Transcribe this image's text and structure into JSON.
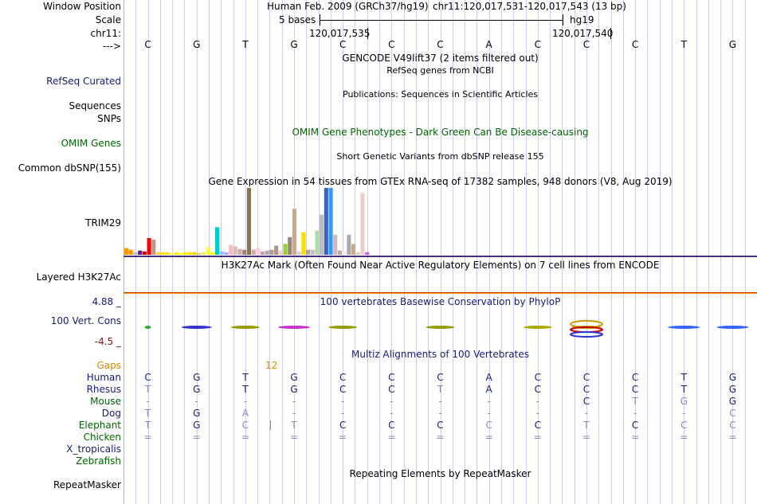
{
  "header": {
    "assembly": "Human Feb. 2009 (GRCh37/hg19)",
    "position": "chr11:120,017,531-120,017,543 (13 bp)",
    "scale_text": "5 bases",
    "scale_db": "hg19",
    "coord_left": "120,017,535",
    "coord_right": "120,017,540"
  },
  "labels": {
    "window_position": "Window Position",
    "scale": "Scale",
    "chr": "chr11:",
    "arrow": "--->",
    "refseq": "RefSeq Curated",
    "sequences": "Sequences",
    "snps": "SNPs",
    "omim_genes": "OMIM Genes",
    "common_dbsnp": "Common dbSNP(155)",
    "trim29": "TRIM29",
    "layered": "Layered H3K27Ac",
    "cons_max": "4.88 _",
    "cons_label": "100 Vert. Cons",
    "cons_min": "-4.5 _",
    "repeatmasker": "RepeatMasker"
  },
  "track_titles": {
    "gencode": "GENCODE V49lift37 (2 items filtered out)",
    "refseq_sub": "RefSeq genes from NCBI",
    "publications": "Publications: Sequences in Scientific Articles",
    "omim": "OMIM Gene Phenotypes - Dark Green Can Be Disease-causing",
    "dbsnp": "Short Genetic Variants from dbSNP release 155",
    "gtex": "Gene Expression in 54 tissues from GTEx RNA-seq of 17382 samples, 948 donors (V8, Aug 2019)",
    "h3k27ac": "H3K27Ac Mark (Often Found Near Active Regulatory Elements) on 7 cell lines from ENCODE",
    "phylop": "100 vertebrates Basewise Conservation by PhyloP",
    "multiz": "Multiz Alignments of 100 Vertebrates",
    "repeats": "Repeating Elements by RepeatMasker"
  },
  "bases": [
    "C",
    "G",
    "T",
    "G",
    "C",
    "C",
    "C",
    "A",
    "C",
    "C",
    "C",
    "T",
    "G"
  ],
  "gaps_label": "Gaps",
  "gaps_value": "12",
  "alignments": [
    {
      "species": "Human",
      "color": "#1a1a73",
      "seq": [
        "C",
        "G",
        "T",
        "G",
        "C",
        "C",
        "C",
        "A",
        "C",
        "C",
        "C",
        "T",
        "G"
      ],
      "faded": [
        0,
        0,
        0,
        0,
        0,
        0,
        0,
        0,
        0,
        0,
        0,
        0,
        0
      ]
    },
    {
      "species": "Rhesus",
      "color": "#1a1a73",
      "seq": [
        "T",
        "G",
        "T",
        "G",
        "C",
        "C",
        "T",
        "A",
        "C",
        "C",
        "C",
        "T",
        "G"
      ],
      "faded": [
        1,
        0,
        0,
        0,
        0,
        0,
        1,
        0,
        0,
        0,
        0,
        0,
        0
      ]
    },
    {
      "species": "Mouse",
      "color": "#006600",
      "seq": [
        "-",
        "-",
        "-",
        "-",
        "-",
        "-",
        "-",
        "-",
        "-",
        "C",
        "T",
        "G",
        "G"
      ],
      "faded": [
        1,
        1,
        1,
        1,
        1,
        1,
        1,
        1,
        1,
        0,
        1,
        1,
        0
      ]
    },
    {
      "species": "Dog",
      "color": "#1a1a73",
      "seq": [
        "T",
        "G",
        "A",
        "-",
        "-",
        "-",
        "-",
        "-",
        "-",
        "-",
        "-",
        "-",
        "C"
      ],
      "faded": [
        1,
        0,
        1,
        1,
        1,
        1,
        1,
        1,
        1,
        1,
        1,
        1,
        1
      ]
    },
    {
      "species": "Elephant",
      "color": "#006600",
      "seq": [
        "T",
        "G",
        "C",
        "T",
        "C",
        "C",
        "C",
        "C",
        "C",
        "T",
        "C",
        "C",
        "C"
      ],
      "faded": [
        1,
        0,
        1,
        1,
        0,
        0,
        0,
        1,
        0,
        1,
        0,
        1,
        1
      ]
    },
    {
      "species": "Chicken",
      "color": "#006600",
      "seq": [
        "=",
        "=",
        "=",
        "=",
        "=",
        "=",
        "=",
        "=",
        "=",
        "=",
        "=",
        "=",
        "="
      ],
      "faded": [
        1,
        1,
        1,
        1,
        1,
        1,
        1,
        1,
        1,
        1,
        1,
        1,
        1
      ]
    },
    {
      "species": "X_tropicalis",
      "color": "#1a1a73",
      "seq": [
        "",
        "",
        "",
        "",
        "",
        "",
        "",
        "",
        "",
        "",
        "",
        "",
        ""
      ],
      "faded": [
        1,
        1,
        1,
        1,
        1,
        1,
        1,
        1,
        1,
        1,
        1,
        1,
        1
      ]
    },
    {
      "species": "Zebrafish",
      "color": "#006600",
      "seq": [
        "",
        "",
        "",
        "",
        "",
        "",
        "",
        "",
        "",
        "",
        "",
        "",
        ""
      ],
      "faded": [
        1,
        1,
        1,
        1,
        1,
        1,
        1,
        1,
        1,
        1,
        1,
        1,
        1
      ]
    }
  ],
  "gtex_values": [
    {
      "v": 8,
      "c": "#ff9900"
    },
    {
      "v": 6,
      "c": "#ff9900"
    },
    {
      "v": 3,
      "c": "#aabbdd"
    },
    {
      "v": 5,
      "c": "#771188"
    },
    {
      "v": 4,
      "c": "#cc0000"
    },
    {
      "v": 20,
      "c": "#ff0000"
    },
    {
      "v": 18,
      "c": "#bb9988"
    },
    {
      "v": 3,
      "c": "#ffcc44"
    },
    {
      "v": 3,
      "c": "#ffdd00"
    },
    {
      "v": 3,
      "c": "#ffdd00"
    },
    {
      "v": 2,
      "c": "#ffff00"
    },
    {
      "v": 3,
      "c": "#eeee00"
    },
    {
      "v": 2,
      "c": "#ffff00"
    },
    {
      "v": 3,
      "c": "#ffee00"
    },
    {
      "v": 3,
      "c": "#ffdd00"
    },
    {
      "v": 3,
      "c": "#eecc00"
    },
    {
      "v": 2,
      "c": "#ddcc66"
    },
    {
      "v": 3,
      "c": "#eeee44"
    },
    {
      "v": 9,
      "c": "#ffff33"
    },
    {
      "v": 3,
      "c": "#ffee00"
    },
    {
      "v": 33,
      "c": "#00cccc"
    },
    {
      "v": 4,
      "c": "#99bbff"
    },
    {
      "v": 3,
      "c": "#aaaaff"
    },
    {
      "v": 12,
      "c": "#ffbbbb"
    },
    {
      "v": 10,
      "c": "#ddbbbb"
    },
    {
      "v": 7,
      "c": "#ccaaaa"
    },
    {
      "v": 6,
      "c": "#998877"
    },
    {
      "v": 80,
      "c": "#8b7355"
    },
    {
      "v": 6,
      "c": "#ccaaaa"
    },
    {
      "v": 8,
      "c": "#ffccdd"
    },
    {
      "v": 4,
      "c": "#cc99aa"
    },
    {
      "v": 5,
      "c": "#aaaaaa"
    },
    {
      "v": 6,
      "c": "#bb9999"
    },
    {
      "v": 11,
      "c": "#aa9988"
    },
    {
      "v": 5,
      "c": "#eecccc"
    },
    {
      "v": 13,
      "c": "#99cc33"
    },
    {
      "v": 21,
      "c": "#998877"
    },
    {
      "v": 55,
      "c": "#ccaa88"
    },
    {
      "v": 4,
      "c": "#ddcccc"
    },
    {
      "v": 27,
      "c": "#ffdd00"
    },
    {
      "v": 6,
      "c": "#aaaaaa"
    },
    {
      "v": 6,
      "c": "#ccbbbb"
    },
    {
      "v": 29,
      "c": "#aaddaa"
    },
    {
      "v": 48,
      "c": "#bbbbbb"
    },
    {
      "v": 80,
      "c": "#3366cc"
    },
    {
      "v": 80,
      "c": "#3399ff"
    },
    {
      "v": 24,
      "c": "#ccbbbb"
    },
    {
      "v": 5,
      "c": "#bbaaaa"
    },
    {
      "v": 4,
      "c": "#eeeeee"
    },
    {
      "v": 24,
      "c": "#aaaaaa"
    },
    {
      "v": 13,
      "c": "#ccaa88"
    },
    {
      "v": 3,
      "c": "#ddcccc"
    },
    {
      "v": 74,
      "c": "#eecccc"
    },
    {
      "v": 3,
      "c": "#cc66ee"
    }
  ],
  "colors": {
    "navy": "#1a1a73",
    "omim_green": "#006600",
    "gaps_orange": "#d48a00",
    "grid": "#ccccee",
    "h3k27ac_line": "#4b2e83"
  }
}
